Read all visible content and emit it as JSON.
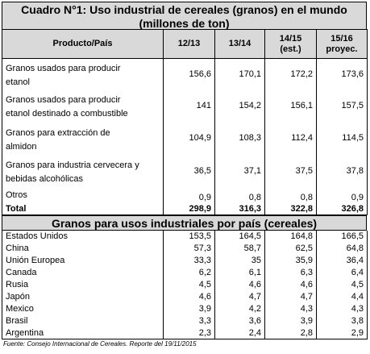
{
  "title": {
    "line1": "Cuadro N°1: Uso industrial de cereales (granos) en el mundo",
    "line2": "(millones de ton)"
  },
  "headers": {
    "product": "Producto/País",
    "y1": "12/13",
    "y2": "13/14",
    "y3a": "14/15",
    "y3b": "(est.)",
    "y4a": "15/16",
    "y4b": "proyec."
  },
  "products": [
    {
      "label1": "Granos usados para producir",
      "label2": "etanol",
      "v": [
        "156,6",
        "170,1",
        "172,2",
        "173,6"
      ]
    },
    {
      "label1": "Granos usados para producir",
      "label2": "etanol destinado a combustible",
      "v": [
        "141",
        "154,2",
        "156,1",
        "157,5"
      ]
    },
    {
      "label1": "Granos para extracción de",
      "label2": "almidon",
      "v": [
        "104,9",
        "108,3",
        "112,4",
        "114,5"
      ]
    },
    {
      "label1": "Granos para industria cervecera y",
      "label2": "bebidas alcohólicas",
      "v": [
        "36,5",
        "37,1",
        "37,5",
        "37,8"
      ]
    },
    {
      "label1": "Otros",
      "label2": "",
      "v": [
        "0,9",
        "0,8",
        "0,8",
        "0,9"
      ]
    }
  ],
  "total": {
    "label": "Total",
    "v": [
      "298,9",
      "316,3",
      "322,8",
      "326,8"
    ]
  },
  "section2_title": "Granos para usos industriales por país (cereales)",
  "countries": [
    {
      "label": "Estados Unidos",
      "v": [
        "153,5",
        "164,5",
        "164,8",
        "166,5"
      ]
    },
    {
      "label": "China",
      "v": [
        "57,3",
        "58,7",
        "62,5",
        "64,8"
      ]
    },
    {
      "label": "Unión Europea",
      "v": [
        "33,3",
        "35",
        "35,9",
        "36,4"
      ]
    },
    {
      "label": "Canada",
      "v": [
        "6,2",
        "6,1",
        "6,3",
        "6,4"
      ]
    },
    {
      "label": "Rusia",
      "v": [
        "4,5",
        "4,6",
        "4,6",
        "4,5"
      ]
    },
    {
      "label": "Japón",
      "v": [
        "4,6",
        "4,7",
        "4,7",
        "4,4"
      ]
    },
    {
      "label": "Mexico",
      "v": [
        "3,9",
        "4,2",
        "4,3",
        "4,3"
      ]
    },
    {
      "label": "Brasil",
      "v": [
        "3,3",
        "3,6",
        "3,9",
        "3,8"
      ]
    },
    {
      "label": "Argentina",
      "v": [
        "2,3",
        "2,4",
        "2,8",
        "2,9"
      ]
    }
  ],
  "source": "Fuente: Consejo Internacional de Cereales. Reporte del 19/11/2015"
}
